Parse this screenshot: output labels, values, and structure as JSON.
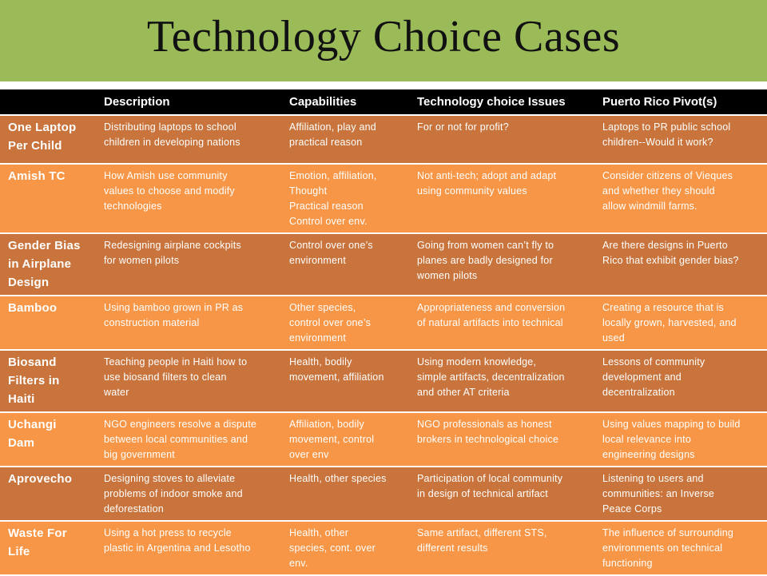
{
  "title": "Technology Choice Cases",
  "colors": {
    "header_bg": "#9bbb59",
    "table_header": "#000000",
    "row_dark": "#c8743c",
    "row_light": "#f79646"
  },
  "table": {
    "headers": [
      "",
      "Description",
      "Capabilities",
      "Technology choice Issues",
      "Puerto Rico Pivot(s)"
    ],
    "rows": [
      {
        "name": "One Laptop\nPer Child",
        "description": "Distributing laptops to school\nchildren in developing nations",
        "capabilities": "Affiliation, play and\npractical reason",
        "issues": "For or not for profit?",
        "pivot": "Laptops to  PR public school\nchildren--Would it work?"
      },
      {
        "name": "Amish TC",
        "description": "How Amish use community\nvalues to choose and modify\ntechnologies",
        "capabilities": "Emotion, affiliation,\nThought\nPractical reason\nControl over env.",
        "issues": "Not anti-tech; adopt and adapt\nusing community values",
        "pivot": "Consider citizens of Vieques\nand whether  they should\nallow windmill farms."
      },
      {
        "name": "Gender Bias\nin Airplane\nDesign",
        "description": "Redesigning airplane cockpits\nfor women pilots",
        "capabilities": "Control over one’s\nenvironment",
        "issues": "Going from women  can’t fly to\nplanes are badly designed for\nwomen pilots",
        "pivot": "Are there designs in Puerto\nRico that exhibit gender bias?"
      },
      {
        "name": "Bamboo",
        "description": "Using bamboo grown in PR as\nconstruction material",
        "capabilities": "Other species,\ncontrol over one’s\nenvironment",
        "issues": "Appropriateness and conversion\nof natural artifacts into technical",
        "pivot": "Creating a resource that is\nlocally grown, harvested, and\nused"
      },
      {
        "name": "Biosand\nFilters in\nHaiti",
        "description": "Teaching people in Haiti how to\nuse biosand filters  to clean\nwater",
        "capabilities": "Health, bodily\nmovement, affiliation",
        "issues": "Using modern knowledge,\nsimple artifacts, decentralization\nand other AT criteria",
        "pivot": "Lessons of community\ndevelopment and\ndecentralization"
      },
      {
        "name": "Uchangi\nDam",
        "description": "NGO engineers resolve a dispute\nbetween local communities and\nbig government",
        "capabilities": "Affiliation, bodily\nmovement, control\nover env",
        "issues": "NGO professionals as honest\nbrokers in technological choice",
        "pivot": "Using values mapping to build\nlocal relevance into\nengineering designs"
      },
      {
        "name": "Aprovecho",
        "description": "Designing stoves to alleviate\nproblems of indoor smoke  and\ndeforestation",
        "capabilities": "Health, other species",
        "issues": "Participation of local community\nin design of technical artifact",
        "pivot": "Listening to users and\ncommunities: an Inverse\nPeace Corps"
      },
      {
        "name": "Waste For\nLife",
        "description": "Using a hot press to recycle\nplastic in Argentina and Lesotho",
        "capabilities": "Health, other\nspecies, cont. over\nenv.",
        "issues": "Same artifact, different STS,\ndifferent results",
        "pivot": "The influence of surrounding\nenvironments on technical\nfunctioning"
      }
    ]
  }
}
